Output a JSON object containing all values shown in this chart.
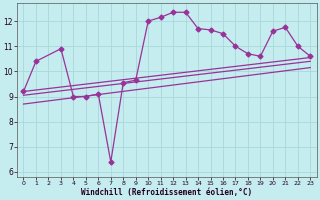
{
  "xlabel": "Windchill (Refroidissement éolien,°C)",
  "xlim": [
    -0.5,
    23.5
  ],
  "ylim": [
    5.8,
    12.7
  ],
  "bg_color": "#c5ecee",
  "grid_color": "#a8d8da",
  "line_color": "#993399",
  "line1_x": [
    0,
    1,
    3,
    4,
    5,
    6,
    7,
    8,
    9,
    10,
    11,
    12,
    13,
    14,
    15,
    16,
    17,
    18,
    19,
    20,
    21,
    22,
    23
  ],
  "line1_y": [
    9.2,
    10.4,
    10.9,
    9.0,
    9.0,
    9.1,
    6.4,
    9.55,
    9.65,
    12.0,
    12.15,
    12.35,
    12.35,
    11.7,
    11.65,
    11.5,
    11.0,
    10.7,
    10.6,
    11.6,
    11.75,
    11.0,
    10.6
  ],
  "trend1_x": [
    0,
    23
  ],
  "trend1_y": [
    9.2,
    10.55
  ],
  "trend2_x": [
    0,
    23
  ],
  "trend2_y": [
    9.05,
    10.4
  ],
  "trend3_x": [
    0,
    23
  ],
  "trend3_y": [
    8.7,
    10.15
  ],
  "yticks": [
    6,
    7,
    8,
    9,
    10,
    11,
    12
  ],
  "xticks": [
    0,
    1,
    2,
    3,
    4,
    5,
    6,
    7,
    8,
    9,
    10,
    11,
    12,
    13,
    14,
    15,
    16,
    17,
    18,
    19,
    20,
    21,
    22,
    23
  ]
}
